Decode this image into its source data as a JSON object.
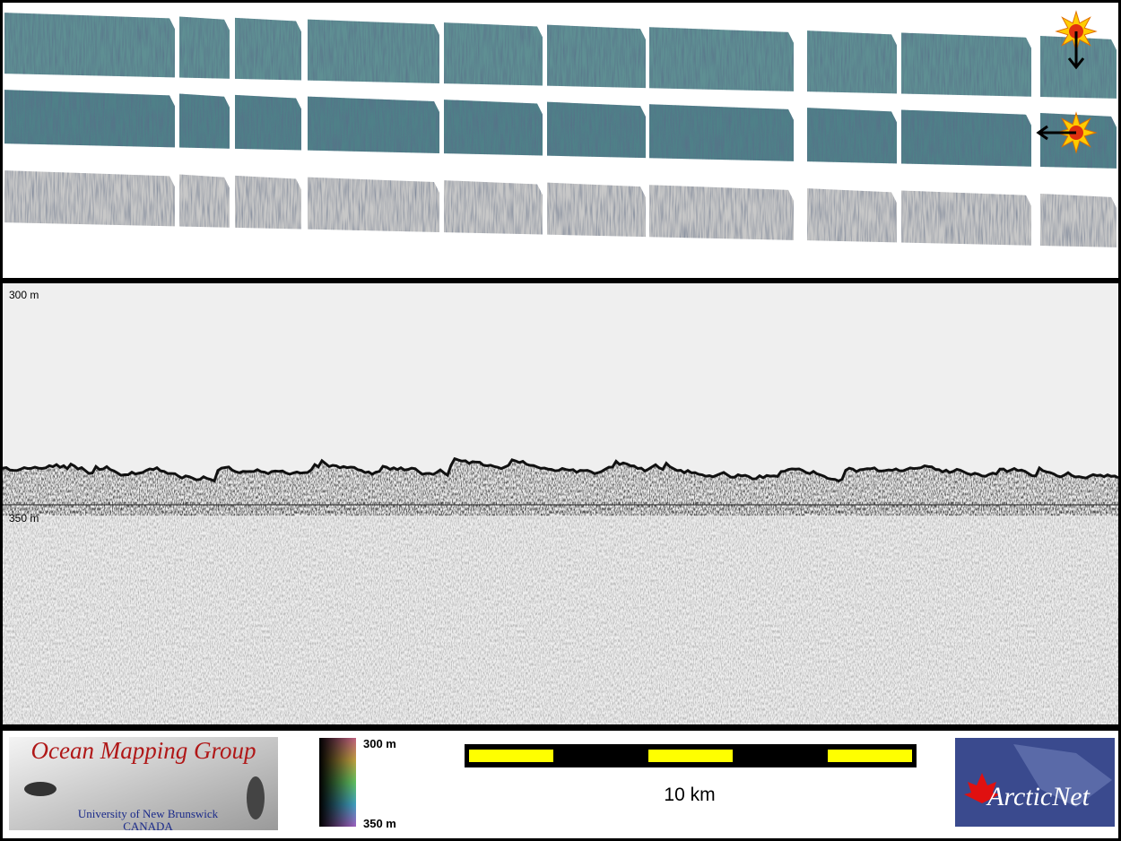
{
  "profile": {
    "top_depth_label": "300 m",
    "mid_depth_label": "350 m"
  },
  "legend": {
    "logo": {
      "title": "Ocean Mapping Group",
      "university": "University of New Brunswick",
      "country": "CANADA"
    },
    "colorbar": {
      "top_label": "300 m",
      "bottom_label": "350 m"
    },
    "scale_bar": {
      "label": "10 km"
    },
    "partner_logo": {
      "name": "ArcticNet"
    }
  }
}
